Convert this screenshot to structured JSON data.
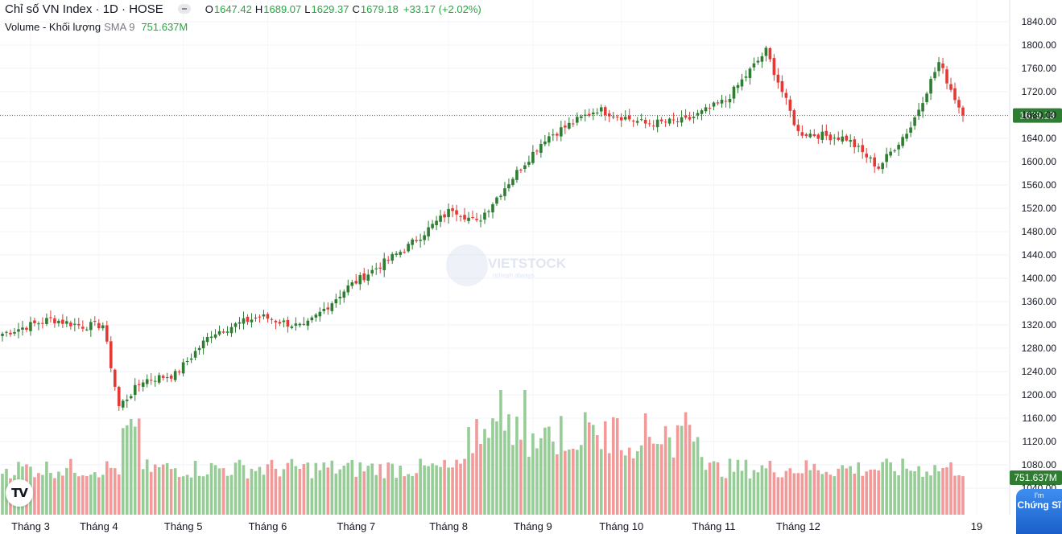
{
  "header": {
    "symbol_title": "Chỉ số VN Index · 1D · HOSE",
    "ohlc": [
      {
        "label": "O",
        "value": "1647.42"
      },
      {
        "label": "H",
        "value": "1689.07"
      },
      {
        "label": "L",
        "value": "1629.37"
      },
      {
        "label": "C",
        "value": "1679.18"
      }
    ],
    "change": "+33.17 (+2.02%)"
  },
  "volume_legend": {
    "name": "Volume - Khối lượng",
    "sma": "SMA 9",
    "value": "751.637M"
  },
  "watermark": {
    "brand": "VIETSTOCK",
    "tagline": "refresh always"
  },
  "tradingview_logo_text": "TV",
  "promo_badge": {
    "line1": "I'm",
    "line2": "Chứng Sĩ"
  },
  "colors": {
    "up": "#2e7d32",
    "down": "#e53935",
    "vol_up": "#96cd96",
    "vol_down": "#f29a9a",
    "last_price_bg": "#2e7d32",
    "vol_label_bg": "#2e7d32"
  },
  "chart_data": {
    "type": "candlestick",
    "title": "Chỉ số VN Index · 1D · HOSE",
    "y_axis": {
      "ticks": [
        "1840.00",
        "1800.00",
        "1760.00",
        "1720.00",
        "1680.00",
        "1640.00",
        "1600.00",
        "1560.00",
        "1520.00",
        "1480.00",
        "1440.00",
        "1400.00",
        "1360.00",
        "1320.00",
        "1280.00",
        "1240.00",
        "1200.00",
        "1160.00",
        "1120.00",
        "1080.00",
        "1040.00"
      ],
      "ylim": [
        1040,
        1880
      ]
    },
    "x_axis": {
      "ticks": [
        "Tháng 3",
        "Tháng 4",
        "Tháng 5",
        "Tháng 6",
        "Tháng 7",
        "Tháng 8",
        "Tháng 9",
        "Tháng 10",
        "Tháng 11",
        "Tháng 12",
        "19"
      ]
    },
    "last_price": {
      "value": 1679.18,
      "label": "1679.18"
    },
    "last_volume_label": "751.637M",
    "grid": true,
    "close_series": [
      {
        "x": "Tháng 3",
        "close": 1305
      },
      {
        "x": "mid-Tháng 3",
        "close": 1330
      },
      {
        "x": "end-Tháng 3",
        "close": 1318
      },
      {
        "x": "early-Tháng 4",
        "close": 1320
      },
      {
        "x": "Tháng 4 low",
        "close": 1180
      },
      {
        "x": "late-Tháng 4",
        "close": 1225
      },
      {
        "x": "Tháng 5",
        "close": 1235
      },
      {
        "x": "mid-Tháng 5",
        "close": 1305
      },
      {
        "x": "Tháng 6",
        "close": 1335
      },
      {
        "x": "mid-Tháng 6",
        "close": 1315
      },
      {
        "x": "Tháng 7",
        "close": 1385
      },
      {
        "x": "mid-Tháng 7",
        "close": 1455
      },
      {
        "x": "late-Tháng 7",
        "close": 1520
      },
      {
        "x": "end-Tháng 7",
        "close": 1495
      },
      {
        "x": "Tháng 8",
        "close": 1565
      },
      {
        "x": "mid-Tháng 8",
        "close": 1640
      },
      {
        "x": "late-Tháng 8",
        "close": 1690
      },
      {
        "x": "Tháng 9",
        "close": 1665
      },
      {
        "x": "mid-Tháng 9",
        "close": 1670
      },
      {
        "x": "Tháng 10",
        "close": 1705
      },
      {
        "x": "peak-Tháng 10",
        "close": 1790
      },
      {
        "x": "late-Tháng 10",
        "close": 1650
      },
      {
        "x": "Tháng 11",
        "close": 1640
      },
      {
        "x": "mid-Tháng 11",
        "close": 1590
      },
      {
        "x": "Tháng 12",
        "close": 1660
      },
      {
        "x": "mid-Tháng 12",
        "close": 1770
      },
      {
        "x": "19",
        "close": 1679.18
      }
    ]
  }
}
